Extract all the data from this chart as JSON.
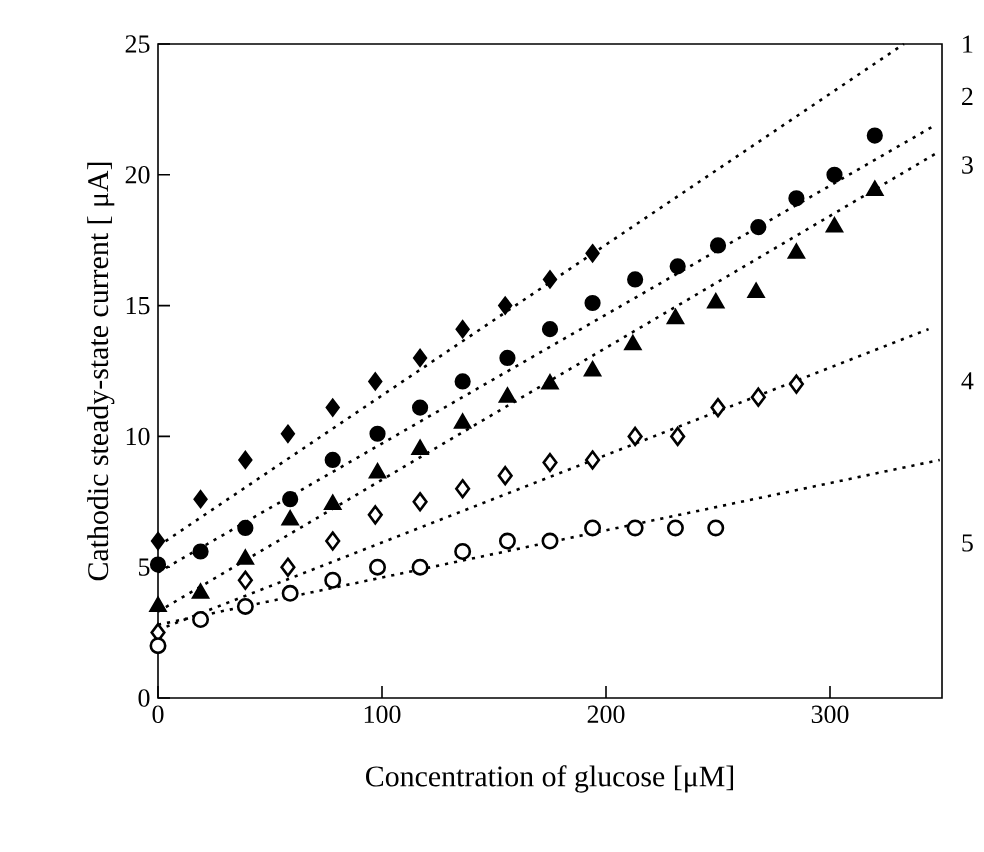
{
  "chart_data": {
    "type": "scatter",
    "xlabel": "Concentration of glucose [μM]",
    "ylabel": "Cathodic steady-state current  [ μA]",
    "xlim": [
      0,
      350
    ],
    "ylim": [
      0,
      25
    ],
    "xticks": [
      0,
      100,
      200,
      300
    ],
    "yticks": [
      0,
      5,
      10,
      15,
      20,
      25
    ],
    "grid": false,
    "series": [
      {
        "marker": "diamond",
        "color": "#000000",
        "x": [
          0,
          19,
          39,
          58,
          78,
          97,
          117,
          136,
          155,
          175,
          194
        ],
        "values": [
          6.0,
          7.6,
          9.1,
          10.1,
          11.1,
          12.1,
          13.0,
          14.1,
          15.0,
          16.0,
          17.0
        ]
      },
      {
        "marker": "circle",
        "color": "#000000",
        "x": [
          0,
          19,
          39,
          59,
          78,
          98,
          117,
          136,
          156,
          175,
          194,
          213,
          232,
          250,
          268,
          285,
          302,
          320
        ],
        "values": [
          5.1,
          5.6,
          6.5,
          7.6,
          9.1,
          10.1,
          11.1,
          12.1,
          13.0,
          14.1,
          15.1,
          16.0,
          16.5,
          17.3,
          18.0,
          19.1,
          20.0,
          21.5
        ]
      },
      {
        "marker": "triangle",
        "color": "#000000",
        "x": [
          0,
          19,
          39,
          59,
          78,
          98,
          117,
          136,
          156,
          175,
          194,
          212,
          231,
          249,
          267,
          285,
          302,
          320
        ],
        "values": [
          3.5,
          4.0,
          5.3,
          6.8,
          7.4,
          8.6,
          9.5,
          10.5,
          11.5,
          12.0,
          12.5,
          13.5,
          14.5,
          15.1,
          15.5,
          17.0,
          18.0,
          19.4
        ]
      },
      {
        "marker": "diamond",
        "color": "#ffffff",
        "x": [
          0,
          39,
          58,
          78,
          97,
          117,
          136,
          155,
          175,
          194,
          213,
          232,
          250,
          268,
          285
        ],
        "values": [
          2.5,
          4.5,
          5.0,
          6.0,
          7.0,
          7.5,
          8.0,
          8.5,
          9.0,
          9.1,
          10.0,
          10.0,
          11.1,
          11.5,
          12.0
        ]
      },
      {
        "marker": "circle",
        "color": "#ffffff",
        "x": [
          0,
          19,
          39,
          59,
          78,
          98,
          117,
          136,
          156,
          175,
          194,
          213,
          231,
          249
        ],
        "values": [
          2.0,
          3.0,
          3.5,
          4.0,
          4.5,
          5.0,
          5.0,
          5.6,
          6.0,
          6.0,
          6.5,
          6.5,
          6.5,
          6.5
        ]
      },
      {
        "type": "line",
        "line_style": "dotted",
        "color": "#000000",
        "x": [
          0,
          333
        ],
        "values": [
          5.8,
          25.0
        ]
      },
      {
        "type": "line",
        "line_style": "dotted",
        "color": "#000000",
        "x": [
          0,
          347
        ],
        "values": [
          4.8,
          21.9
        ]
      },
      {
        "type": "line",
        "line_style": "dotted",
        "color": "#000000",
        "x": [
          0,
          347
        ],
        "values": [
          3.3,
          20.8
        ]
      },
      {
        "type": "line",
        "line_style": "dotted",
        "color": "#000000",
        "x": [
          0,
          344
        ],
        "values": [
          2.6,
          14.1
        ]
      },
      {
        "type": "line",
        "line_style": "dotted",
        "color": "#000000",
        "x": [
          0,
          349
        ],
        "values": [
          2.8,
          9.1
        ]
      }
    ],
    "annotations": [
      "1",
      "2",
      "3",
      "4",
      "5"
    ]
  }
}
